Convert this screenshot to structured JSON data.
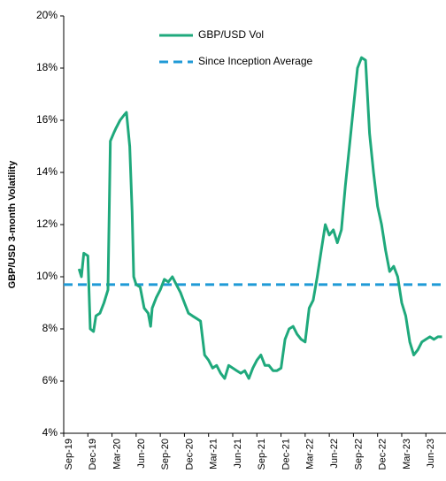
{
  "chart_data": {
    "type": "line",
    "ylabel": "GBP/USD 3-month Volatility",
    "xlim": [
      0,
      47.5
    ],
    "xticks": [
      {
        "value": 0,
        "label": "Sep-19"
      },
      {
        "value": 3,
        "label": "Dec-19"
      },
      {
        "value": 6,
        "label": "Mar-20"
      },
      {
        "value": 9,
        "label": "Jun-20"
      },
      {
        "value": 12,
        "label": "Sep-20"
      },
      {
        "value": 15,
        "label": "Dec-20"
      },
      {
        "value": 18,
        "label": "Mar-21"
      },
      {
        "value": 21,
        "label": "Jun-21"
      },
      {
        "value": 24,
        "label": "Sep-21"
      },
      {
        "value": 27,
        "label": "Dec-21"
      },
      {
        "value": 30,
        "label": "Mar-22"
      },
      {
        "value": 33,
        "label": "Jun-22"
      },
      {
        "value": 36,
        "label": "Sep-22"
      },
      {
        "value": 39,
        "label": "Dec-22"
      },
      {
        "value": 42,
        "label": "Mar-23"
      },
      {
        "value": 45,
        "label": "Jun-23"
      }
    ],
    "ylim": [
      4,
      20
    ],
    "yticks": [
      {
        "value": 4,
        "label": "4%"
      },
      {
        "value": 6,
        "label": "6%"
      },
      {
        "value": 8,
        "label": "8%"
      },
      {
        "value": 10,
        "label": "10%"
      },
      {
        "value": 12,
        "label": "12%"
      },
      {
        "value": 14,
        "label": "14%"
      },
      {
        "value": 16,
        "label": "16%"
      },
      {
        "value": 18,
        "label": "18%"
      },
      {
        "value": 20,
        "label": "20%"
      }
    ],
    "series": [
      {
        "name": "GBP/USD Vol",
        "color": "#1fa97c",
        "x": [
          1.9,
          2.2,
          2.5,
          3,
          3.3,
          3.7,
          4,
          4.5,
          5,
          5.5,
          5.8,
          6.2,
          6.5,
          7,
          7.5,
          7.8,
          8.2,
          8.5,
          8.7,
          9,
          9.5,
          10,
          10.5,
          10.8,
          11,
          11.5,
          12,
          12.5,
          13,
          13.5,
          14,
          14.5,
          15,
          15.5,
          16,
          16.5,
          17,
          17.5,
          18,
          18.5,
          19,
          19.5,
          20,
          20.5,
          21,
          21.5,
          22,
          22.5,
          23,
          23.5,
          24,
          24.5,
          25,
          25.5,
          26,
          26.5,
          27,
          27.5,
          28,
          28.5,
          29,
          29.5,
          30,
          30.5,
          31,
          31.5,
          32,
          32.5,
          33,
          33.5,
          34,
          34.5,
          35,
          35.5,
          36,
          36.5,
          37,
          37.5,
          38,
          38.5,
          39,
          39.5,
          40,
          40.5,
          41,
          41.5,
          42,
          42.5,
          43,
          43.5,
          44,
          44.5,
          45,
          45.5,
          46,
          46.5,
          47
        ],
        "values": [
          10.3,
          10.0,
          10.9,
          10.8,
          8.0,
          7.9,
          8.5,
          8.6,
          9.0,
          9.5,
          15.2,
          15.5,
          15.7,
          16.0,
          16.2,
          16.3,
          15.0,
          12.5,
          10.0,
          9.7,
          9.6,
          8.8,
          8.6,
          8.1,
          8.8,
          9.2,
          9.5,
          9.9,
          9.8,
          10.0,
          9.7,
          9.4,
          9.0,
          8.6,
          8.5,
          8.4,
          8.3,
          7.0,
          6.8,
          6.5,
          6.6,
          6.3,
          6.1,
          6.6,
          6.5,
          6.4,
          6.3,
          6.4,
          6.1,
          6.5,
          6.8,
          7.0,
          6.6,
          6.6,
          6.4,
          6.4,
          6.5,
          7.6,
          8.0,
          8.1,
          7.8,
          7.6,
          7.5,
          8.8,
          9.1,
          10.0,
          11.0,
          12.0,
          11.6,
          11.8,
          11.3,
          11.8,
          13.5,
          15.0,
          16.5,
          18.0,
          18.4,
          18.3,
          15.5,
          14.0,
          12.7,
          12.0,
          11.0,
          10.2,
          10.4,
          10.0,
          9.0,
          8.5,
          7.5,
          7.0,
          7.2,
          7.5,
          7.6,
          7.7,
          7.6,
          7.7,
          7.7
        ]
      }
    ],
    "reference_line": {
      "name": "Since Inception Average",
      "value": 9.7,
      "color": "#1f9ad6"
    }
  }
}
